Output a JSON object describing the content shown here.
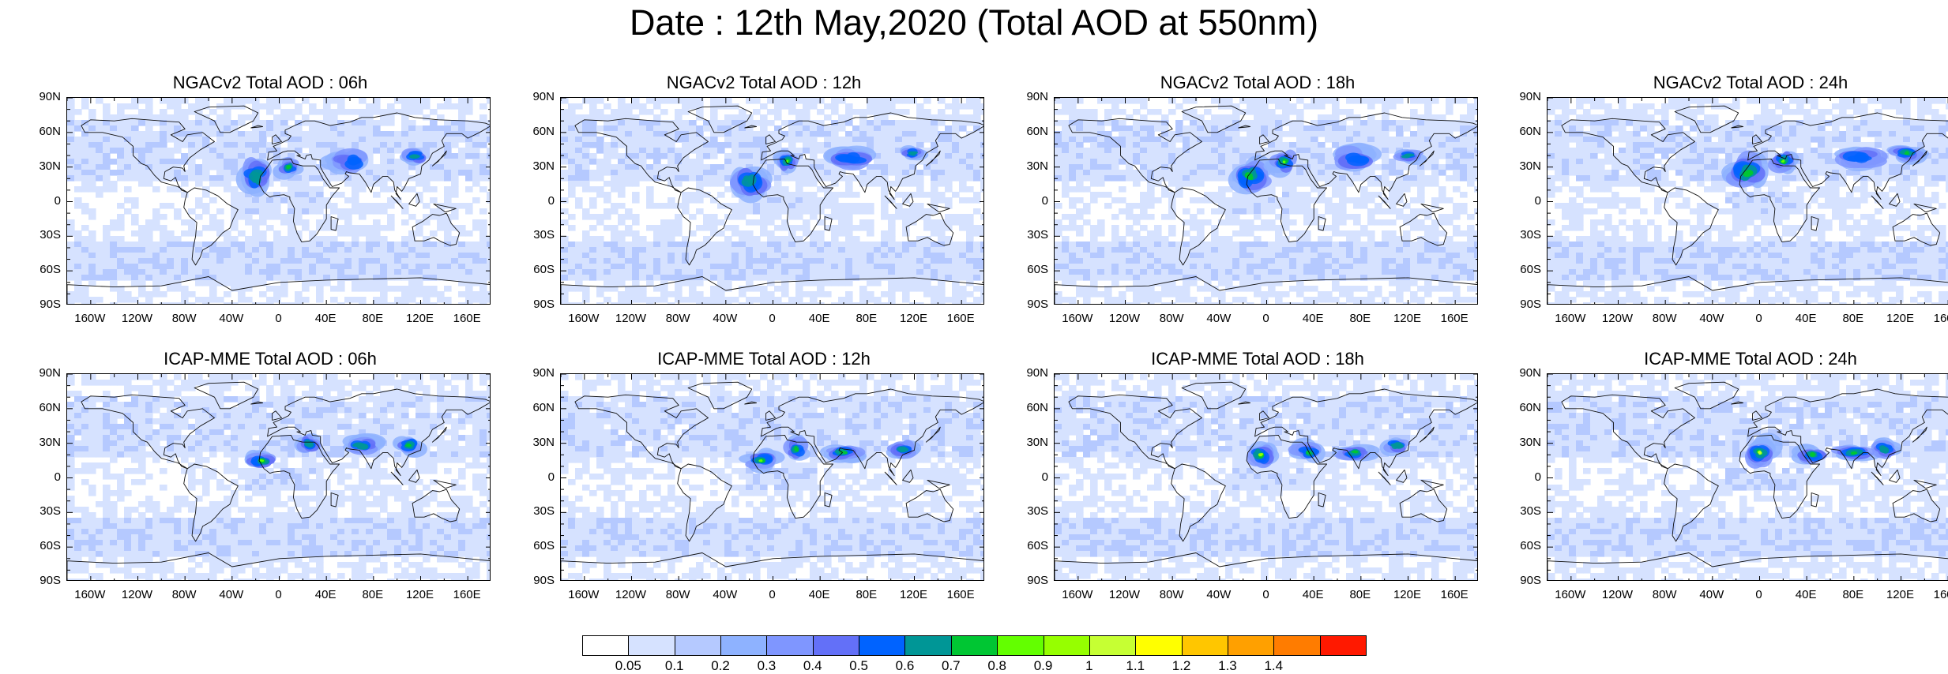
{
  "title": "Date : 12th May,2020 (Total AOD at 550nm)",
  "panels": [
    {
      "title": "NGACv2 Total AOD : 06h",
      "model": "NGACv2",
      "hour": "06h",
      "plumes": [
        [
          -20,
          22,
          14,
          16,
          2
        ],
        [
          8,
          30,
          10,
          8,
          3
        ],
        [
          60,
          35,
          18,
          10,
          1
        ],
        [
          115,
          40,
          12,
          7,
          2
        ]
      ]
    },
    {
      "title": "NGACv2 Total AOD : 12h",
      "model": "NGACv2",
      "hour": "12h",
      "plumes": [
        [
          -20,
          18,
          16,
          14,
          2
        ],
        [
          12,
          35,
          10,
          9,
          4
        ],
        [
          65,
          38,
          20,
          10,
          1
        ],
        [
          118,
          42,
          10,
          6,
          2
        ]
      ]
    },
    {
      "title": "NGACv2 Total AOD : 18h",
      "model": "NGACv2",
      "hour": "18h",
      "plumes": [
        [
          -15,
          22,
          18,
          16,
          3
        ],
        [
          15,
          35,
          12,
          10,
          4
        ],
        [
          75,
          38,
          22,
          10,
          1
        ],
        [
          120,
          40,
          12,
          6,
          2
        ]
      ]
    },
    {
      "title": "NGACv2 Total AOD : 24h",
      "model": "NGACv2",
      "hour": "24h",
      "plumes": [
        [
          -10,
          25,
          18,
          16,
          3
        ],
        [
          20,
          35,
          12,
          10,
          4
        ],
        [
          85,
          38,
          22,
          10,
          1
        ],
        [
          125,
          42,
          14,
          7,
          3
        ]
      ]
    },
    {
      "title": "ICAP-MME Total AOD : 06h",
      "model": "ICAP-MME",
      "hour": "06h",
      "plumes": [
        [
          -15,
          15,
          14,
          8,
          4
        ],
        [
          25,
          30,
          10,
          8,
          2
        ],
        [
          70,
          28,
          16,
          8,
          2
        ],
        [
          110,
          28,
          12,
          8,
          3
        ]
      ]
    },
    {
      "title": "ICAP-MME Total AOD : 12h",
      "model": "ICAP-MME",
      "hour": "12h",
      "plumes": [
        [
          -10,
          15,
          14,
          9,
          4
        ],
        [
          20,
          25,
          10,
          10,
          3
        ],
        [
          60,
          22,
          16,
          7,
          3
        ],
        [
          110,
          25,
          12,
          8,
          2
        ]
      ]
    },
    {
      "title": "ICAP-MME Total AOD : 18h",
      "model": "ICAP-MME",
      "hour": "18h",
      "plumes": [
        [
          -5,
          20,
          14,
          12,
          5
        ],
        [
          35,
          22,
          14,
          9,
          3
        ],
        [
          75,
          22,
          16,
          7,
          3
        ],
        [
          110,
          28,
          12,
          8,
          2
        ]
      ]
    },
    {
      "title": "ICAP-MME Total AOD : 24h",
      "model": "ICAP-MME",
      "hour": "24h",
      "plumes": [
        [
          0,
          22,
          14,
          12,
          6
        ],
        [
          45,
          20,
          14,
          8,
          3
        ],
        [
          80,
          22,
          18,
          7,
          3
        ],
        [
          105,
          25,
          12,
          8,
          2
        ]
      ]
    }
  ],
  "lat_labels": [
    "90N",
    "60N",
    "30N",
    "0",
    "30S",
    "60S",
    "90S"
  ],
  "lon_labels": [
    "160W",
    "120W",
    "80W",
    "40W",
    "0",
    "40E",
    "80E",
    "120E",
    "160E"
  ],
  "lon_values": [
    -160,
    -120,
    -80,
    -40,
    0,
    40,
    80,
    120,
    160
  ],
  "lat_values": [
    90,
    60,
    30,
    0,
    -30,
    -60,
    -90
  ],
  "map_extent": {
    "lon": [
      -180,
      180
    ],
    "lat": [
      -90,
      90
    ]
  },
  "colorbar": {
    "colors": [
      "#ffffff",
      "#d6e2ff",
      "#b5c9ff",
      "#8eb2ff",
      "#7f96ff",
      "#6370f8",
      "#0063ff",
      "#009696",
      "#00c633",
      "#63ff00",
      "#96ff00",
      "#c6ff33",
      "#ffff00",
      "#ffc600",
      "#ffa000",
      "#ff7c00",
      "#ff1900"
    ],
    "labels": [
      "0.05",
      "0.1",
      "0.2",
      "0.3",
      "0.4",
      "0.5",
      "0.6",
      "0.7",
      "0.8",
      "0.9",
      "1",
      "1.1",
      "1.2",
      "1.3",
      "1.4"
    ]
  },
  "background_level": 1
}
